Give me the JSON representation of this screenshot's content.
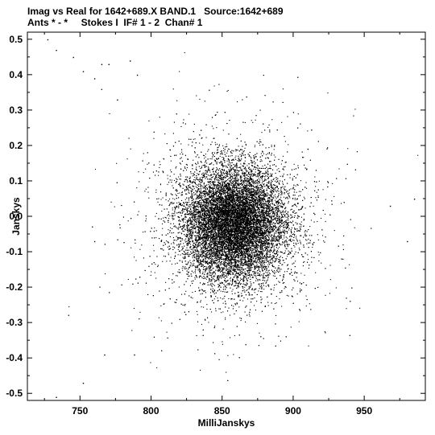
{
  "chart_data": {
    "type": "scatter",
    "title_line1": "Imag vs Real for 1642+689.X BAND.1   Source:1642+689",
    "title_line2": "Ants * - *     Stokes I  IF# 1 - 2  Chan# 1",
    "xlabel": "MilliJanskys",
    "ylabel": "Janskys",
    "xlim": [
      713,
      993
    ],
    "ylim": [
      -0.52,
      0.52
    ],
    "xticks": [
      750,
      800,
      850,
      900,
      950
    ],
    "yticks": [
      0.5,
      0.4,
      0.3,
      0.2,
      0.1,
      0.0,
      -0.1,
      -0.2,
      -0.3,
      -0.4,
      -0.5
    ],
    "xtick_labels": [
      "750",
      "800",
      "850",
      "900",
      "950"
    ],
    "ytick_labels": [
      "0.5",
      "0.4",
      "0.3",
      "0.2",
      "0.1",
      "0.0",
      "-0.1",
      "-0.2",
      "-0.3",
      "-0.4",
      "-0.5"
    ],
    "cluster": {
      "center_x": 858,
      "center_y": -0.02,
      "std_x": 18,
      "std_y": 0.08,
      "point_count": 18000
    },
    "outlier_points": [
      {
        "x": 727,
        "y": 0.5
      },
      {
        "x": 733,
        "y": 0.47
      },
      {
        "x": 745,
        "y": 0.45
      },
      {
        "x": 752,
        "y": 0.41
      },
      {
        "x": 760,
        "y": 0.39
      },
      {
        "x": 765,
        "y": 0.43
      },
      {
        "x": 770,
        "y": 0.43
      },
      {
        "x": 785,
        "y": 0.44
      },
      {
        "x": 776,
        "y": 0.33
      },
      {
        "x": 790,
        "y": 0.4
      },
      {
        "x": 760,
        "y": -0.07
      },
      {
        "x": 767,
        "y": -0.39
      },
      {
        "x": 752,
        "y": -0.47
      },
      {
        "x": 733,
        "y": -0.51
      },
      {
        "x": 788,
        "y": -0.39
      },
      {
        "x": 985,
        "y": 0.05
      },
      {
        "x": 980,
        "y": -0.07
      },
      {
        "x": 968,
        "y": 0.03
      }
    ],
    "grid": false,
    "legend": "none",
    "marker_color": "#000000"
  }
}
